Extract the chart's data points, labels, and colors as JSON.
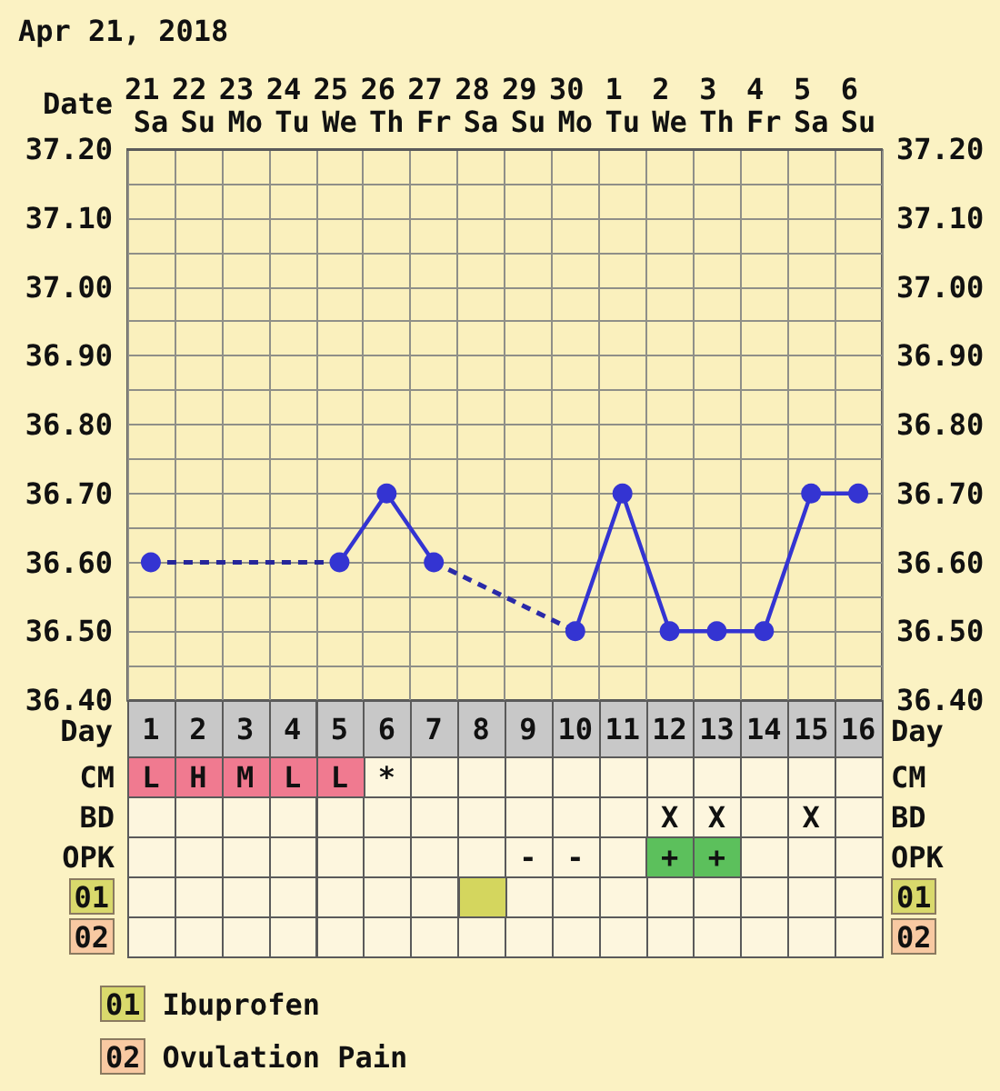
{
  "chart_data": [
    {
      "type": "line",
      "title": "Apr 21, 2018",
      "xlabel": "Date",
      "categories": [
        "21 Sa",
        "22 Su",
        "23 Mo",
        "24 Tu",
        "25 We",
        "26 Th",
        "27 Fr",
        "28 Sa",
        "29 Su",
        "30 Mo",
        "1 Tu",
        "2 We",
        "3 Th",
        "4 Fr",
        "5 Sa",
        "6 Su"
      ],
      "x2label": "Day",
      "x2lim": [
        0.5,
        16.5
      ],
      "x2ticks": [
        1,
        2,
        3,
        4,
        5,
        6,
        7,
        8,
        9,
        10,
        11,
        12,
        13,
        14,
        15,
        16
      ],
      "series": [
        {
          "color": "#3434d2",
          "line_style": "solid",
          "marker": "circle",
          "values": [
            36.6,
            null,
            null,
            null,
            36.6,
            36.7,
            36.6,
            null,
            null,
            36.5,
            36.7,
            36.5,
            36.5,
            36.5,
            36.7,
            36.7
          ]
        },
        {
          "color": "#26269a",
          "line_style": "dashed",
          "marker": "none",
          "values": [
            36.6,
            null,
            null,
            null,
            36.6,
            null,
            null,
            null,
            null,
            null,
            null,
            null,
            null,
            null,
            null,
            null
          ]
        },
        {
          "color": "#2a2aa8",
          "line_style": "dashed",
          "marker": "none",
          "values": [
            null,
            null,
            null,
            null,
            null,
            null,
            36.6,
            null,
            null,
            36.5,
            null,
            null,
            null,
            null,
            null,
            null
          ]
        }
      ],
      "ylim": [
        36.4,
        37.2
      ],
      "yticks": [
        {
          "value": 36.4,
          "label": "36.40"
        },
        {
          "value": 36.45,
          "label": null
        },
        {
          "value": 36.5,
          "label": "36.50"
        },
        {
          "value": 36.55,
          "label": null
        },
        {
          "value": 36.6,
          "label": "36.60"
        },
        {
          "value": 36.65,
          "label": null
        },
        {
          "value": 36.7,
          "label": "36.70"
        },
        {
          "value": 36.75,
          "label": null
        },
        {
          "value": 36.8,
          "label": "36.80"
        },
        {
          "value": 36.85,
          "label": null
        },
        {
          "value": 36.9,
          "label": "36.90"
        },
        {
          "value": 36.95,
          "label": null
        },
        {
          "value": 37.0,
          "label": "37.00"
        },
        {
          "value": 37.05,
          "label": null
        },
        {
          "value": 37.1,
          "label": "37.10"
        },
        {
          "value": 37.15,
          "label": null
        },
        {
          "value": 37.2,
          "label": "37.20"
        }
      ],
      "y2lim": [
        36.4,
        37.2
      ],
      "y2ticks": [
        {
          "value": 36.4,
          "label": "36.40"
        },
        {
          "value": 36.45,
          "label": null
        },
        {
          "value": 36.5,
          "label": "36.50"
        },
        {
          "value": 36.55,
          "label": null
        },
        {
          "value": 36.6,
          "label": "36.60"
        },
        {
          "value": 36.65,
          "label": null
        },
        {
          "value": 36.7,
          "label": "36.70"
        },
        {
          "value": 36.75,
          "label": null
        },
        {
          "value": 36.8,
          "label": "36.80"
        },
        {
          "value": 36.85,
          "label": null
        },
        {
          "value": 36.9,
          "label": "36.90"
        },
        {
          "value": 36.95,
          "label": null
        },
        {
          "value": 37.0,
          "label": "37.00"
        },
        {
          "value": 37.05,
          "label": null
        },
        {
          "value": 37.1,
          "label": "37.10"
        },
        {
          "value": 37.15,
          "label": null
        },
        {
          "value": 37.2,
          "label": "37.20"
        }
      ],
      "grid": true
    },
    {
      "type": "other",
      "y_categories": [
        "CM",
        "BD",
        "OPK",
        "01",
        "02"
      ],
      "y2_categories": [
        "CM",
        "BD",
        "OPK",
        "01",
        "02"
      ],
      "cell_labels": [
        [
          "L",
          "H",
          "M",
          "L",
          "L",
          "*",
          null,
          null,
          null,
          null,
          null,
          null,
          null,
          null,
          null,
          null
        ],
        [
          null,
          null,
          null,
          null,
          null,
          null,
          null,
          null,
          null,
          null,
          null,
          "X",
          "X",
          null,
          "X",
          null
        ],
        [
          null,
          null,
          null,
          null,
          null,
          null,
          null,
          null,
          "-",
          "-",
          null,
          "+",
          "+",
          null,
          null,
          null
        ],
        [
          null,
          null,
          null,
          null,
          null,
          null,
          null,
          null,
          null,
          null,
          null,
          null,
          null,
          null,
          null,
          null
        ],
        [
          null,
          null,
          null,
          null,
          null,
          null,
          null,
          null,
          null,
          null,
          null,
          null,
          null,
          null,
          null,
          null
        ]
      ],
      "colors": [
        [
          "#f07a90",
          "#f07a90",
          "#f07a90",
          "#f07a90",
          "#f07a90",
          null,
          null,
          null,
          null,
          null,
          null,
          null,
          null,
          null,
          null,
          null
        ],
        [
          null,
          null,
          null,
          null,
          null,
          null,
          null,
          null,
          null,
          null,
          null,
          null,
          null,
          null,
          null,
          null
        ],
        [
          null,
          null,
          null,
          null,
          null,
          null,
          null,
          null,
          null,
          null,
          null,
          "#5cc05c",
          "#5cc05c",
          null,
          null,
          null
        ],
        [
          null,
          null,
          null,
          null,
          null,
          null,
          null,
          "#d4d65e",
          null,
          null,
          null,
          null,
          null,
          null,
          null,
          null
        ],
        [
          null,
          null,
          null,
          null,
          null,
          null,
          null,
          null,
          null,
          null,
          null,
          null,
          null,
          null,
          null,
          null
        ]
      ],
      "series": [
        {
          "name": "Ibuprofen",
          "color": "#d9d96c"
        },
        {
          "name": "Ovulation Pain",
          "color": "#f8c9a2"
        }
      ],
      "legend": "bottom left"
    }
  ]
}
